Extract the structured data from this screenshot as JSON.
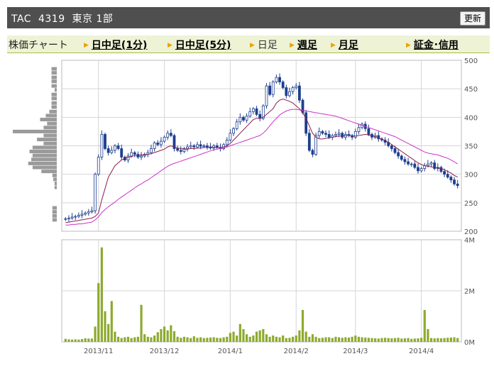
{
  "header": {
    "title": "TAC  4319  東京 1部",
    "refresh_label": "更新"
  },
  "tabs": {
    "label": "株価チャート",
    "items": [
      {
        "label": "日中足(1分)",
        "link": true
      },
      {
        "label": "日中足(5分)",
        "link": true
      },
      {
        "label": "日足",
        "link": false
      },
      {
        "label": "週足",
        "link": true
      },
      {
        "label": "月足",
        "link": true
      },
      {
        "label": "証金･信用",
        "link": true
      }
    ]
  },
  "colors": {
    "candle": "#1d3f8f",
    "ma_short": "#8b1d4f",
    "ma_long": "#cc33cc",
    "volume": "#8daa2f",
    "volume_profile": "#9a9a9a",
    "grid": "#d5d5d5",
    "tab_bg": "#eef3d6",
    "title_bg": "#4f4f4f",
    "tab_arrow": "#f2a000"
  },
  "chart_data": [
    {
      "type": "line",
      "name": "price",
      "y_ticks": [
        "500",
        "450",
        "400",
        "350",
        "300",
        "250",
        "200"
      ],
      "ylim": [
        200,
        500
      ],
      "x_ticks": [
        "2013/11",
        "2013/12",
        "2014/1",
        "2014/2",
        "2014/3",
        "2014/4"
      ],
      "close": [
        222,
        223,
        225,
        226,
        228,
        230,
        232,
        234,
        236,
        300,
        330,
        370,
        345,
        338,
        342,
        350,
        345,
        330,
        325,
        332,
        338,
        335,
        330,
        332,
        335,
        338,
        345,
        355,
        352,
        358,
        365,
        372,
        368,
        345,
        342,
        340,
        345,
        348,
        350,
        348,
        352,
        349,
        350,
        348,
        346,
        350,
        347,
        345,
        352,
        360,
        372,
        380,
        392,
        400,
        395,
        402,
        410,
        415,
        405,
        398,
        420,
        455,
        440,
        462,
        470,
        462,
        452,
        438,
        445,
        452,
        455,
        430,
        408,
        372,
        342,
        335,
        368,
        375,
        372,
        370,
        365,
        368,
        370,
        372,
        365,
        370,
        368,
        365,
        375,
        382,
        388,
        380,
        370,
        365,
        368,
        362,
        360,
        356,
        350,
        345,
        338,
        332,
        326,
        322,
        318,
        318,
        312,
        306,
        310,
        315,
        318,
        320,
        310,
        312,
        305,
        300,
        295,
        290,
        283,
        280
      ],
      "ma_short": [
        215,
        216,
        217,
        218,
        219,
        220,
        221,
        222,
        223,
        226,
        232,
        255,
        275,
        295,
        305,
        315,
        320,
        325,
        328,
        330,
        331,
        333,
        333,
        334,
        334,
        335,
        336,
        338,
        340,
        342,
        344,
        348,
        350,
        348,
        346,
        345,
        344,
        344,
        345,
        345,
        346,
        346,
        347,
        347,
        347,
        347,
        347,
        347,
        348,
        350,
        354,
        360,
        366,
        372,
        378,
        384,
        390,
        396,
        398,
        398,
        400,
        405,
        410,
        415,
        425,
        430,
        432,
        430,
        428,
        425,
        420,
        415,
        408,
        398,
        385,
        372,
        365,
        362,
        362,
        363,
        364,
        365,
        366,
        367,
        367,
        368,
        368,
        367,
        367,
        368,
        369,
        370,
        369,
        368,
        366,
        364,
        362,
        359,
        356,
        352,
        348,
        344,
        340,
        336,
        332,
        328,
        324,
        320,
        317,
        315,
        314,
        313,
        312,
        311,
        310,
        308,
        305,
        302,
        298,
        295
      ],
      "ma_long": [
        211,
        211,
        212,
        212,
        213,
        213,
        214,
        215,
        216,
        220,
        225,
        233,
        238,
        243,
        247,
        251,
        256,
        260,
        264,
        268,
        272,
        276,
        280,
        283,
        287,
        290,
        294,
        298,
        302,
        306,
        310,
        314,
        317,
        319,
        321,
        323,
        325,
        327,
        329,
        331,
        333,
        335,
        337,
        339,
        341,
        343,
        344,
        345,
        346,
        348,
        350,
        352,
        354,
        356,
        358,
        360,
        362,
        364,
        366,
        368,
        372,
        378,
        385,
        392,
        398,
        404,
        408,
        411,
        413,
        414,
        414,
        413,
        412,
        411,
        410,
        409,
        408,
        407,
        406,
        405,
        404,
        403,
        402,
        400,
        398,
        396,
        394,
        392,
        390,
        388,
        386,
        384,
        382,
        380,
        378,
        376,
        374,
        372,
        370,
        368,
        366,
        363,
        360,
        357,
        354,
        351,
        348,
        345,
        342,
        339,
        337,
        336,
        335,
        334,
        332,
        330,
        328,
        325,
        322,
        318
      ],
      "volume_profile": [
        {
          "price": 485,
          "volume": 0.12
        },
        {
          "price": 478,
          "volume": 0.12
        },
        {
          "price": 470,
          "volume": 0.12
        },
        {
          "price": 463,
          "volume": 0.12
        },
        {
          "price": 455,
          "volume": 0.12
        },
        {
          "price": 448,
          "volume": 0.05
        },
        {
          "price": 440,
          "volume": 0.12
        },
        {
          "price": 433,
          "volume": 0.12
        },
        {
          "price": 425,
          "volume": 0.12
        },
        {
          "price": 418,
          "volume": 0.12
        },
        {
          "price": 410,
          "volume": 0.17
        },
        {
          "price": 403,
          "volume": 0.25
        },
        {
          "price": 396,
          "volume": 0.38
        },
        {
          "price": 389,
          "volume": 0.22
        },
        {
          "price": 382,
          "volume": 0.3
        },
        {
          "price": 375,
          "volume": 1.0
        },
        {
          "price": 368,
          "volume": 0.3
        },
        {
          "price": 361,
          "volume": 0.45
        },
        {
          "price": 354,
          "volume": 0.3
        },
        {
          "price": 347,
          "volume": 0.55
        },
        {
          "price": 340,
          "volume": 0.62
        },
        {
          "price": 333,
          "volume": 0.55
        },
        {
          "price": 326,
          "volume": 0.58
        },
        {
          "price": 319,
          "volume": 0.65
        },
        {
          "price": 312,
          "volume": 0.55
        },
        {
          "price": 305,
          "volume": 0.35
        },
        {
          "price": 298,
          "volume": 0.1
        },
        {
          "price": 291,
          "volume": 0.08
        },
        {
          "price": 284,
          "volume": 0.05
        },
        {
          "price": 277,
          "volume": 0.05
        },
        {
          "price": 241,
          "volume": 0.1
        },
        {
          "price": 234,
          "volume": 0.1
        },
        {
          "price": 227,
          "volume": 0.1
        },
        {
          "price": 220,
          "volume": 0.1
        }
      ]
    },
    {
      "type": "bar",
      "name": "volume",
      "y_ticks": [
        "4M",
        "2M",
        "0M"
      ],
      "ylim": [
        0,
        4000000
      ],
      "values": [
        120000,
        100000,
        90000,
        100000,
        90000,
        110000,
        140000,
        130000,
        130000,
        600000,
        2300000,
        3700000,
        1200000,
        700000,
        1600000,
        400000,
        200000,
        150000,
        180000,
        200000,
        150000,
        180000,
        200000,
        1450000,
        300000,
        200000,
        180000,
        250000,
        380000,
        500000,
        600000,
        450000,
        650000,
        420000,
        200000,
        160000,
        200000,
        180000,
        150000,
        220000,
        160000,
        180000,
        150000,
        160000,
        170000,
        180000,
        160000,
        150000,
        180000,
        200000,
        350000,
        400000,
        250000,
        700000,
        500000,
        300000,
        200000,
        250000,
        400000,
        450000,
        500000,
        300000,
        200000,
        250000,
        200000,
        180000,
        250000,
        150000,
        160000,
        200000,
        250000,
        450000,
        1250000,
        400000,
        200000,
        300000,
        200000,
        150000,
        160000,
        180000,
        180000,
        150000,
        200000,
        180000,
        160000,
        180000,
        170000,
        200000,
        250000,
        200000,
        180000,
        170000,
        160000,
        150000,
        140000,
        130000,
        150000,
        160000,
        150000,
        140000,
        150000,
        160000,
        130000,
        140000,
        150000,
        120000,
        130000,
        140000,
        160000,
        1250000,
        500000,
        150000,
        140000,
        150000,
        140000,
        150000,
        160000,
        170000,
        180000,
        150000
      ]
    }
  ]
}
